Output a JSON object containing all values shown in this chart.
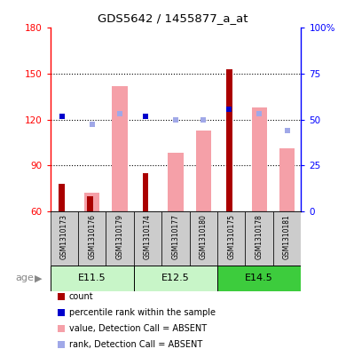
{
  "title": "GDS5642 / 1455877_a_at",
  "samples": [
    "GSM1310173",
    "GSM1310176",
    "GSM1310179",
    "GSM1310174",
    "GSM1310177",
    "GSM1310180",
    "GSM1310175",
    "GSM1310178",
    "GSM1310181"
  ],
  "age_groups": [
    {
      "label": "E11.5",
      "start": 0,
      "end": 3,
      "color": "#c8f5c8"
    },
    {
      "label": "E12.5",
      "start": 3,
      "end": 6,
      "color": "#c8f5c8"
    },
    {
      "label": "E14.5",
      "start": 6,
      "end": 9,
      "color": "#3dcc3d"
    }
  ],
  "ylim_left": [
    60,
    180
  ],
  "ylim_right": [
    0,
    100
  ],
  "yticks_left": [
    60,
    90,
    120,
    150,
    180
  ],
  "yticks_right": [
    0,
    25,
    50,
    75,
    100
  ],
  "ytick_labels_right": [
    "0",
    "25",
    "50",
    "75",
    "100%"
  ],
  "count_values": [
    78,
    70,
    60,
    85,
    60,
    60,
    153,
    60,
    60
  ],
  "rank_values": [
    122,
    60,
    60,
    122,
    60,
    60,
    127,
    60,
    60
  ],
  "value_absent": [
    60,
    72,
    142,
    60,
    98,
    113,
    60,
    128,
    101
  ],
  "rank_absent": [
    60,
    117,
    124,
    60,
    120,
    120,
    60,
    124,
    113
  ],
  "color_count": "#aa0000",
  "color_rank": "#0000cc",
  "color_value_absent": "#f5a0a8",
  "color_rank_absent": "#a0a8e8",
  "sample_box_color": "#cccccc",
  "legend_items": [
    {
      "color": "#aa0000",
      "label": "count"
    },
    {
      "color": "#0000cc",
      "label": "percentile rank within the sample"
    },
    {
      "color": "#f5a0a8",
      "label": "value, Detection Call = ABSENT"
    },
    {
      "color": "#a0a8e8",
      "label": "rank, Detection Call = ABSENT"
    }
  ]
}
